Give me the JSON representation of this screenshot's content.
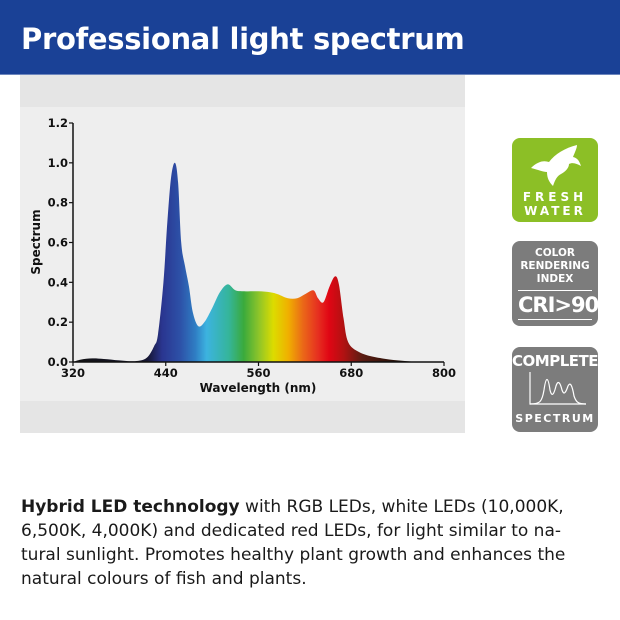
{
  "header": {
    "title": "Professional light spectrum",
    "background": "#1a4196"
  },
  "chart_data": {
    "type": "area",
    "xlabel": "Wavelength (nm)",
    "ylabel": "Spectrum",
    "xlim": [
      320,
      800
    ],
    "ylim": [
      0,
      1.2
    ],
    "xticks": [
      "320",
      "440",
      "560",
      "680",
      "800"
    ],
    "yticks": [
      "0.0",
      "0.2",
      "0.4",
      "0.6",
      "0.8",
      "1.0",
      "1.2"
    ],
    "fill": "wavelength color gradient",
    "x": [
      320,
      330,
      345,
      360,
      380,
      400,
      415,
      425,
      430,
      437,
      442,
      447,
      452,
      456,
      460,
      465,
      470,
      475,
      482,
      490,
      500,
      510,
      520,
      530,
      540,
      560,
      575,
      585,
      598,
      610,
      620,
      631,
      637,
      644,
      652,
      659,
      664,
      670,
      676,
      690,
      710,
      740,
      770,
      800
    ],
    "y": [
      0,
      0.012,
      0.018,
      0.015,
      0.008,
      0.004,
      0.02,
      0.08,
      0.14,
      0.4,
      0.7,
      0.93,
      1.0,
      0.9,
      0.6,
      0.48,
      0.38,
      0.25,
      0.18,
      0.2,
      0.27,
      0.35,
      0.39,
      0.36,
      0.355,
      0.355,
      0.35,
      0.34,
      0.32,
      0.32,
      0.34,
      0.36,
      0.32,
      0.3,
      0.38,
      0.43,
      0.39,
      0.22,
      0.1,
      0.05,
      0.025,
      0.008,
      0,
      0
    ]
  },
  "badges": {
    "freshwater": {
      "line1": "FRESH",
      "line2": "WATER",
      "icon": "angelfish-icon",
      "color": "#8cbf26"
    },
    "cri": {
      "line1": "COLOR",
      "line2": "RENDERING",
      "line3": "INDEX",
      "value": "CRI>90",
      "color": "#7c7c7c"
    },
    "spectrum": {
      "top": "COMPLETE",
      "bottom": "SPECTRUM",
      "icon": "spectrum-graph-icon",
      "color": "#7c7c7c"
    }
  },
  "description": {
    "bold": "Hybrid LED technology",
    "line1": " with RGB LEDs, white LEDs (10,000K,",
    "line2": "6,500K, 4,000K) and dedicated red LEDs, for light similar to na-",
    "line3": "tural sunlight. Promotes healthy plant growth and enhances the",
    "line4": "natural colours of fish and plants."
  }
}
